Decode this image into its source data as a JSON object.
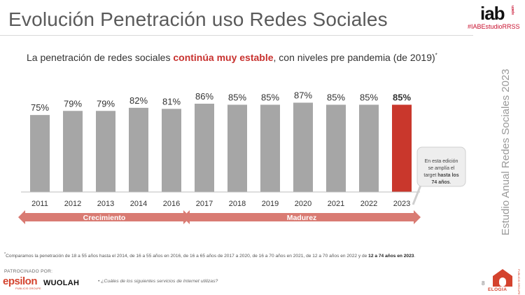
{
  "header": {
    "title": "Evolución Penetración uso Redes Sociales",
    "logo": "iab",
    "logo_sub": "spain",
    "hashtag": "#IABEstudioRRSS"
  },
  "subtitle": {
    "before": "La penetración de redes sociales ",
    "bold": "continúa muy estable",
    "after": ", con niveles pre pandemia (de 2019)",
    "mark": "*"
  },
  "side_label": "Estudio Anual Redes Sociales 2023",
  "chart_data": {
    "type": "bar",
    "categories": [
      "2011",
      "2012",
      "2013",
      "2014",
      "2016",
      "2017",
      "2018",
      "2019",
      "2020",
      "2021",
      "2022",
      "2023"
    ],
    "values": [
      75,
      79,
      79,
      82,
      81,
      86,
      85,
      85,
      87,
      85,
      85,
      85
    ],
    "value_labels": [
      "75%",
      "79%",
      "79%",
      "82%",
      "81%",
      "86%",
      "85%",
      "85%",
      "87%",
      "85%",
      "85%",
      "85%"
    ],
    "title": "",
    "xlabel": "",
    "ylabel": "",
    "ylim": [
      0,
      100
    ],
    "grid": false,
    "highlight_index": 11,
    "colors": {
      "bar": "#a6a6a6",
      "highlight": "#c9372c",
      "phase": "#d97b73"
    },
    "phases": [
      {
        "label": "Crecimiento",
        "from": "2011",
        "to": "2016"
      },
      {
        "label": "Madurez",
        "from": "2017",
        "to": "2023"
      }
    ],
    "callout": {
      "text1": "En esta edición",
      "text2": "se amplía el",
      "text3": "target ",
      "text4_bold": "hasta los",
      "text5_bold": "74 años",
      "text5_end": "."
    }
  },
  "footnote": {
    "mark": "*",
    "text": "Comparamos la penetración de 18 a 55 años hasta el 2014, de 16 a 55 años en 2016, de 16 a 65 años de 2017 a 2020, de 16 a 70 años en 2021, de 12 a 70 años en 2022 y de ",
    "bold": "12 a 74 años en 2023",
    "end": "."
  },
  "footer": {
    "sponsored_label": "PATROCINADO POR:",
    "sponsor1": "epsilon",
    "sponsor1_sub": "PUBLICIS GROUPE",
    "sponsor2": "WUOLAH",
    "question": "¿Cuáles de los siguientes servicios de Internet utilizas?",
    "page": "8",
    "agency": "ELOGIA",
    "agency_sub": "PUBLICIS GROUPE"
  }
}
